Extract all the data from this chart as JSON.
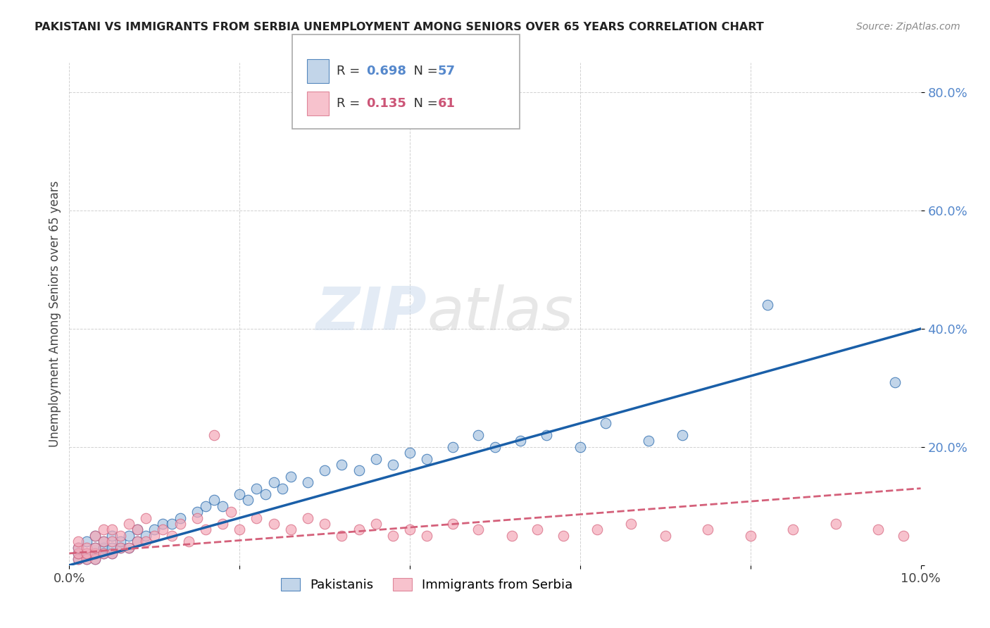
{
  "title": "PAKISTANI VS IMMIGRANTS FROM SERBIA UNEMPLOYMENT AMONG SENIORS OVER 65 YEARS CORRELATION CHART",
  "source": "Source: ZipAtlas.com",
  "ylabel": "Unemployment Among Seniors over 65 years",
  "xlim": [
    0,
    0.1
  ],
  "ylim": [
    0,
    0.85
  ],
  "xtick_positions": [
    0.0,
    0.02,
    0.04,
    0.06,
    0.08,
    0.1
  ],
  "xtick_labels": [
    "0.0%",
    "",
    "",
    "",
    "",
    "10.0%"
  ],
  "ytick_positions": [
    0.0,
    0.2,
    0.4,
    0.6,
    0.8
  ],
  "ytick_labels": [
    "",
    "20.0%",
    "40.0%",
    "60.0%",
    "80.0%"
  ],
  "legend_r1": "0.698",
  "legend_n1": "57",
  "legend_r2": "0.135",
  "legend_n2": "61",
  "legend_label1": "Pakistanis",
  "legend_label2": "Immigrants from Serbia",
  "blue_color": "#a8c4e0",
  "pink_color": "#f4a8b8",
  "trend_blue": "#1a5fa8",
  "trend_pink": "#d4607a",
  "watermark_zip": "ZIP",
  "watermark_atlas": "atlas",
  "pakistani_x": [
    0.001,
    0.001,
    0.001,
    0.002,
    0.002,
    0.002,
    0.003,
    0.003,
    0.003,
    0.003,
    0.004,
    0.004,
    0.004,
    0.005,
    0.005,
    0.005,
    0.006,
    0.006,
    0.007,
    0.007,
    0.008,
    0.008,
    0.009,
    0.01,
    0.011,
    0.012,
    0.013,
    0.015,
    0.016,
    0.017,
    0.018,
    0.02,
    0.021,
    0.022,
    0.023,
    0.024,
    0.025,
    0.026,
    0.028,
    0.03,
    0.032,
    0.034,
    0.036,
    0.038,
    0.04,
    0.042,
    0.045,
    0.048,
    0.05,
    0.053,
    0.056,
    0.06,
    0.063,
    0.068,
    0.072,
    0.082,
    0.097
  ],
  "pakistani_y": [
    0.01,
    0.02,
    0.03,
    0.01,
    0.02,
    0.04,
    0.01,
    0.02,
    0.03,
    0.05,
    0.02,
    0.03,
    0.04,
    0.02,
    0.03,
    0.05,
    0.03,
    0.04,
    0.03,
    0.05,
    0.04,
    0.06,
    0.05,
    0.06,
    0.07,
    0.07,
    0.08,
    0.09,
    0.1,
    0.11,
    0.1,
    0.12,
    0.11,
    0.13,
    0.12,
    0.14,
    0.13,
    0.15,
    0.14,
    0.16,
    0.17,
    0.16,
    0.18,
    0.17,
    0.19,
    0.18,
    0.2,
    0.22,
    0.2,
    0.21,
    0.22,
    0.2,
    0.24,
    0.21,
    0.22,
    0.44,
    0.31
  ],
  "serbia_x": [
    0.001,
    0.001,
    0.001,
    0.001,
    0.002,
    0.002,
    0.002,
    0.003,
    0.003,
    0.003,
    0.003,
    0.004,
    0.004,
    0.004,
    0.005,
    0.005,
    0.005,
    0.006,
    0.006,
    0.007,
    0.007,
    0.008,
    0.008,
    0.009,
    0.009,
    0.01,
    0.011,
    0.012,
    0.013,
    0.014,
    0.015,
    0.016,
    0.017,
    0.018,
    0.019,
    0.02,
    0.022,
    0.024,
    0.026,
    0.028,
    0.03,
    0.032,
    0.034,
    0.036,
    0.038,
    0.04,
    0.042,
    0.045,
    0.048,
    0.052,
    0.055,
    0.058,
    0.062,
    0.066,
    0.07,
    0.075,
    0.08,
    0.085,
    0.09,
    0.095,
    0.098
  ],
  "serbia_y": [
    0.01,
    0.02,
    0.03,
    0.04,
    0.01,
    0.02,
    0.03,
    0.01,
    0.02,
    0.03,
    0.05,
    0.02,
    0.04,
    0.06,
    0.02,
    0.04,
    0.06,
    0.03,
    0.05,
    0.03,
    0.07,
    0.04,
    0.06,
    0.04,
    0.08,
    0.05,
    0.06,
    0.05,
    0.07,
    0.04,
    0.08,
    0.06,
    0.22,
    0.07,
    0.09,
    0.06,
    0.08,
    0.07,
    0.06,
    0.08,
    0.07,
    0.05,
    0.06,
    0.07,
    0.05,
    0.06,
    0.05,
    0.07,
    0.06,
    0.05,
    0.06,
    0.05,
    0.06,
    0.07,
    0.05,
    0.06,
    0.05,
    0.06,
    0.07,
    0.06,
    0.05
  ],
  "trend_blue_x0": 0.0,
  "trend_blue_y0": 0.0,
  "trend_blue_x1": 0.1,
  "trend_blue_y1": 0.4,
  "trend_pink_x0": 0.0,
  "trend_pink_y0": 0.02,
  "trend_pink_x1": 0.1,
  "trend_pink_y1": 0.13
}
